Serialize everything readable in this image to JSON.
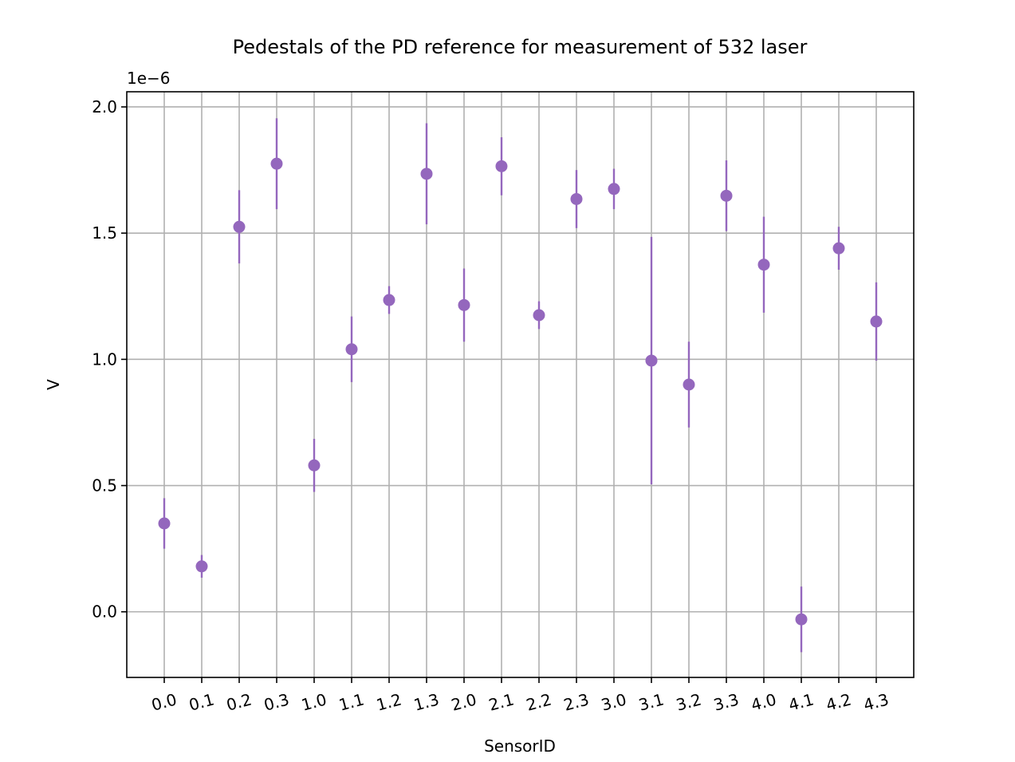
{
  "chart_data": {
    "type": "scatter",
    "title": "Pedestals of the PD reference for measurement of 532 laser",
    "xlabel": "SensorID",
    "ylabel": "V",
    "y_offset_label": "1e−6",
    "y_scale": 1e-06,
    "categories": [
      "0.0",
      "0.1",
      "0.2",
      "0.3",
      "1.0",
      "1.1",
      "1.2",
      "1.3",
      "2.0",
      "2.1",
      "2.2",
      "2.3",
      "3.0",
      "3.1",
      "3.2",
      "3.3",
      "4.0",
      "4.1",
      "4.2",
      "4.3"
    ],
    "series": [
      {
        "values": [
          0.35,
          0.18,
          1.525,
          1.775,
          0.58,
          1.04,
          1.235,
          1.735,
          1.215,
          1.765,
          1.175,
          1.635,
          1.675,
          0.995,
          0.9,
          1.648,
          1.375,
          -0.03,
          1.44,
          1.15
        ],
        "errors": [
          0.1,
          0.045,
          0.145,
          0.18,
          0.105,
          0.13,
          0.055,
          0.2,
          0.145,
          0.115,
          0.055,
          0.115,
          0.08,
          0.49,
          0.17,
          0.14,
          0.19,
          0.13,
          0.085,
          0.155
        ],
        "color": "#9467bd"
      }
    ],
    "ylim": [
      -0.26,
      2.06
    ],
    "yticks": [
      "0.0",
      "0.5",
      "1.0",
      "1.5",
      "2.0"
    ],
    "ytick_values": [
      0.0,
      0.5,
      1.0,
      1.5,
      2.0
    ],
    "grid": true,
    "xtick_rotation": 15
  }
}
